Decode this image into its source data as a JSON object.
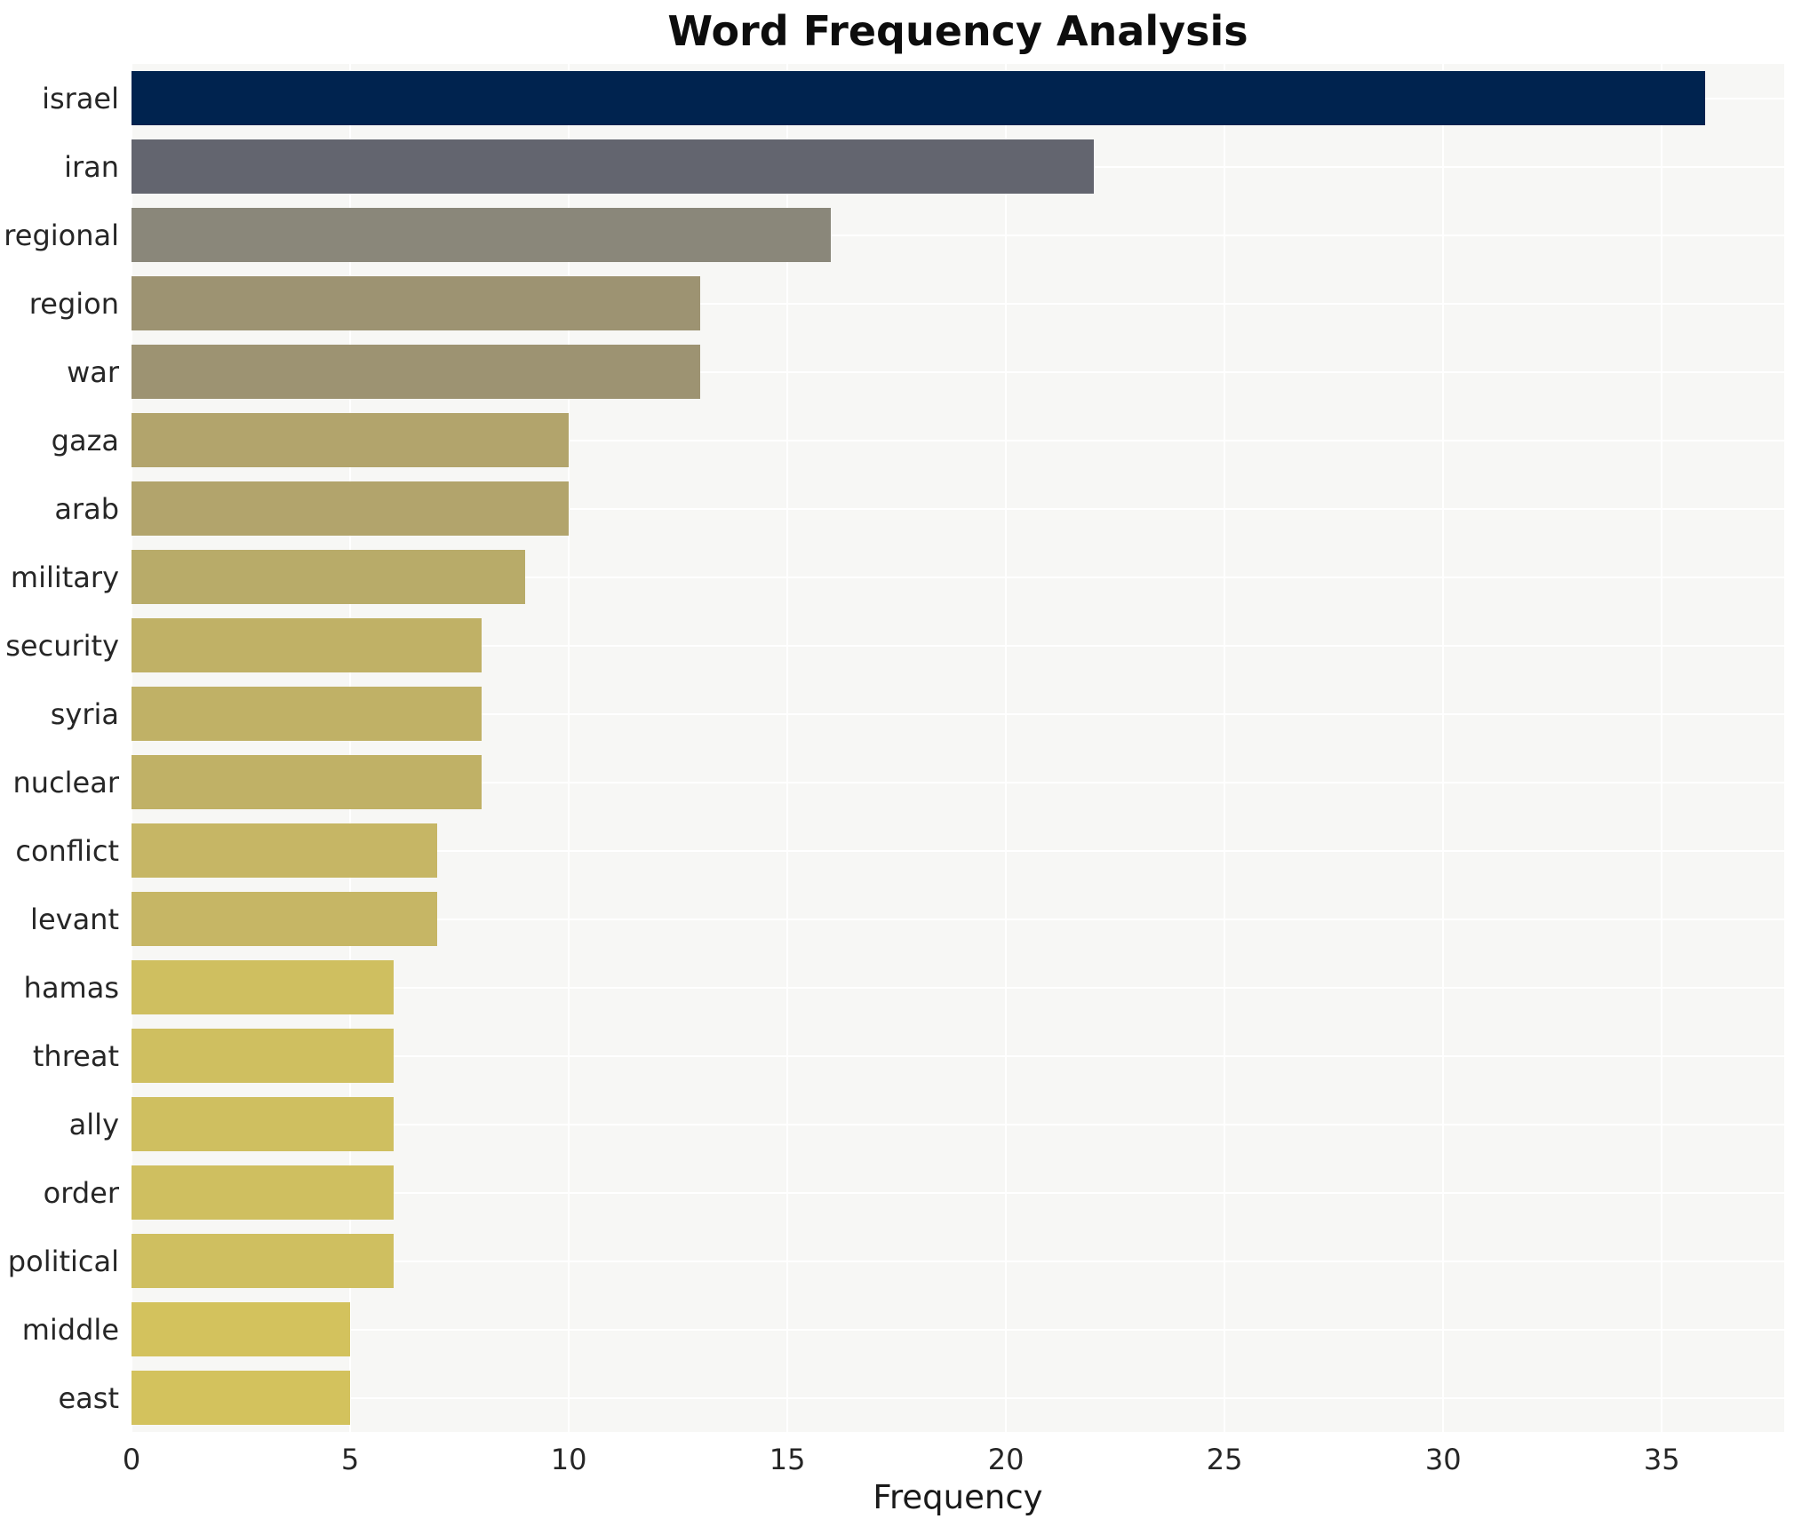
{
  "chart_data": {
    "type": "bar",
    "orientation": "horizontal",
    "title": "Word Frequency Analysis",
    "xlabel": "Frequency",
    "ylabel": "",
    "categories": [
      "israel",
      "iran",
      "regional",
      "region",
      "war",
      "gaza",
      "arab",
      "military",
      "security",
      "syria",
      "nuclear",
      "conflict",
      "levant",
      "hamas",
      "threat",
      "ally",
      "order",
      "political",
      "middle",
      "east"
    ],
    "values": [
      36,
      22,
      16,
      13,
      13,
      10,
      10,
      9,
      8,
      8,
      8,
      7,
      7,
      6,
      6,
      6,
      6,
      6,
      5,
      5
    ],
    "bar_colors": [
      "#00234F",
      "#63656F",
      "#8A877A",
      "#9D9372",
      "#9D9372",
      "#B2A46C",
      "#B2A46C",
      "#B8AB69",
      "#C0B166",
      "#C0B166",
      "#C0B166",
      "#C6B665",
      "#C6B665",
      "#CFBF60",
      "#CFBF60",
      "#CFBF60",
      "#CFBF60",
      "#CFBF60",
      "#D3C25D",
      "#D3C25D"
    ],
    "xlim": [
      0,
      37.8
    ],
    "xticks": [
      0,
      5,
      10,
      15,
      20,
      25,
      30,
      35
    ],
    "grid": true,
    "legend": false,
    "colors": {
      "plot_background": "#f7f7f5",
      "figure_background": "#ffffff",
      "grid_color": "#ffffff",
      "text_color": "#262626"
    }
  }
}
